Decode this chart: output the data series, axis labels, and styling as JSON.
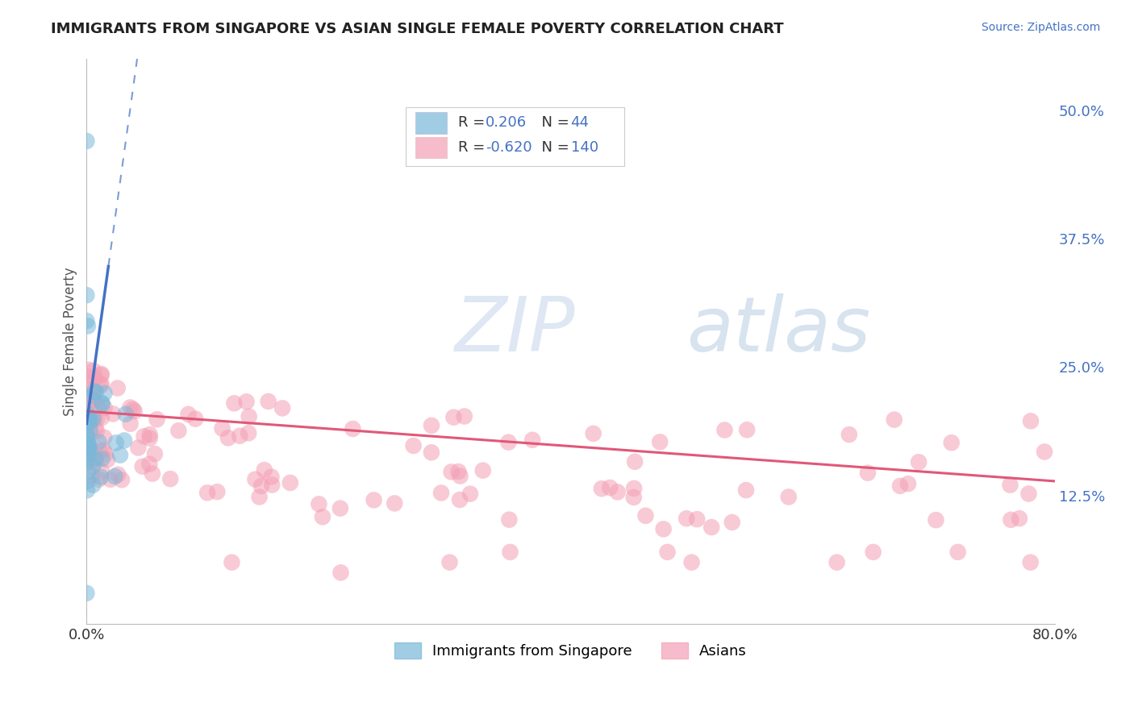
{
  "title": "IMMIGRANTS FROM SINGAPORE VS ASIAN SINGLE FEMALE POVERTY CORRELATION CHART",
  "source": "Source: ZipAtlas.com",
  "ylabel": "Single Female Poverty",
  "xlim": [
    0.0,
    0.8
  ],
  "ylim": [
    0.0,
    0.55
  ],
  "xtick_positions": [
    0.0,
    0.2,
    0.4,
    0.6,
    0.8
  ],
  "xticklabels": [
    "0.0%",
    "",
    "",
    "",
    "80.0%"
  ],
  "ytick_positions": [
    0.0,
    0.125,
    0.25,
    0.375,
    0.5
  ],
  "yticklabels": [
    "",
    "12.5%",
    "25.0%",
    "37.5%",
    "50.0%"
  ],
  "blue_color": "#7ab8d9",
  "pink_color": "#f4a0b5",
  "blue_line_color": "#4472c4",
  "pink_line_color": "#e05878",
  "watermark_zip": "ZIP",
  "watermark_atlas": "atlas",
  "title_color": "#222222",
  "source_color": "#4472c4",
  "tick_color": "#4472c4",
  "ylabel_color": "#555555",
  "grid_color": "#dddddd",
  "legend_border_color": "#cccccc"
}
